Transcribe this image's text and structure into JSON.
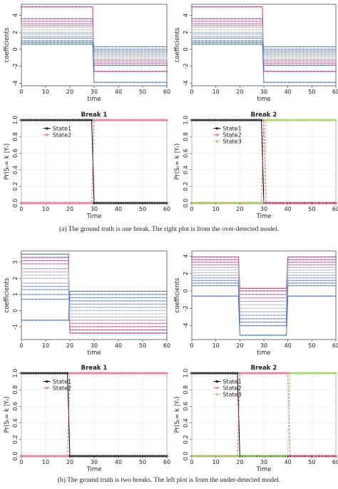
{
  "captions": {
    "a": "(a) The ground truth is one break. The right plot is from the over-detected model.",
    "b": "(b) The ground truth is two breaks. The left plot is from the under-detected model."
  },
  "colors": {
    "state1": "#000000",
    "state2": "#e05a8a",
    "state3": "#8fcf4a",
    "coef_pink": "#b0388f",
    "coef_blue": "#4a6fc4",
    "coef_light": "#c8c8c8"
  },
  "chart_data": [
    {
      "id": "a1-coef",
      "type": "line",
      "xlabel": "time",
      "ylabel": "coefficients",
      "xlim": [
        0,
        60
      ],
      "ylim": [
        -4.3,
        5.3
      ],
      "xticks": [
        "0",
        "10",
        "20",
        "30",
        "40",
        "50",
        "60"
      ],
      "yticks": [
        "-4",
        "-2",
        "0",
        "2",
        "4"
      ],
      "breaks": [
        30
      ],
      "series_levels": [
        [
          5.0,
          -2.6
        ],
        [
          3.6,
          -1.9
        ],
        [
          3.3,
          -1.7
        ],
        [
          3.0,
          -1.5
        ],
        [
          2.8,
          -1.3
        ],
        [
          2.6,
          -1.2
        ],
        [
          2.3,
          -1.0
        ],
        [
          2.0,
          -0.8
        ],
        [
          1.8,
          -0.6
        ],
        [
          1.5,
          -0.4
        ],
        [
          1.3,
          -0.2
        ],
        [
          1.0,
          0.0
        ],
        [
          0.8,
          0.3
        ],
        [
          0.6,
          -3.9
        ]
      ]
    },
    {
      "id": "a2-coef",
      "type": "line",
      "xlabel": "time",
      "ylabel": "coefficients",
      "xlim": [
        0,
        60
      ],
      "ylim": [
        -4.3,
        5.3
      ],
      "xticks": [
        "0",
        "10",
        "20",
        "30",
        "40",
        "50",
        "60"
      ],
      "yticks": [
        "-4",
        "-2",
        "0",
        "2",
        "4"
      ],
      "breaks": [
        30
      ],
      "series_levels": [
        [
          5.0,
          -2.6
        ],
        [
          3.6,
          -1.9
        ],
        [
          3.3,
          -1.7
        ],
        [
          3.0,
          -1.5
        ],
        [
          2.8,
          -1.3
        ],
        [
          2.6,
          -1.2
        ],
        [
          2.3,
          -1.0
        ],
        [
          2.0,
          -0.8
        ],
        [
          1.8,
          -0.6
        ],
        [
          1.5,
          -0.4
        ],
        [
          1.3,
          -0.2
        ],
        [
          1.0,
          0.0
        ],
        [
          0.8,
          0.3
        ],
        [
          0.6,
          -3.9
        ]
      ]
    },
    {
      "id": "a1-prob",
      "type": "line",
      "title": "Break 1",
      "xlabel": "Time",
      "ylabel": "Pr(Sₜ= k |Yₜ)",
      "xlim": [
        0,
        60
      ],
      "ylim": [
        0,
        1
      ],
      "xticks": [
        "0",
        "10",
        "20",
        "30",
        "40",
        "50",
        "60"
      ],
      "yticks": [
        "0.0",
        "0.2",
        "0.4",
        "0.6",
        "0.8",
        "1.0"
      ],
      "legend": [
        "State1",
        "State2"
      ],
      "series": [
        {
          "name": "State1",
          "values": [
            [
              0,
              1
            ],
            [
              29,
              1
            ],
            [
              30,
              0
            ],
            [
              60,
              0
            ]
          ]
        },
        {
          "name": "State2",
          "values": [
            [
              0,
              0
            ],
            [
              29,
              0
            ],
            [
              30,
              1
            ],
            [
              60,
              1
            ]
          ]
        }
      ]
    },
    {
      "id": "a2-prob",
      "type": "line",
      "title": "Break 2",
      "xlabel": "Time",
      "ylabel": "Pr(Sₜ= k |Yₜ)",
      "xlim": [
        0,
        60
      ],
      "ylim": [
        0,
        1
      ],
      "xticks": [
        "0",
        "10",
        "20",
        "30",
        "40",
        "50",
        "60"
      ],
      "yticks": [
        "0.0",
        "0.2",
        "0.4",
        "0.6",
        "0.8",
        "1.0"
      ],
      "legend": [
        "State1",
        "State2",
        "State3"
      ],
      "series": [
        {
          "name": "State1",
          "values": [
            [
              0,
              1
            ],
            [
              29,
              1
            ],
            [
              30,
              0
            ],
            [
              60,
              0
            ]
          ]
        },
        {
          "name": "State2",
          "values": [
            [
              0,
              0
            ],
            [
              29,
              0
            ],
            [
              30,
              1
            ],
            [
              31,
              0
            ],
            [
              60,
              0
            ]
          ]
        },
        {
          "name": "State3",
          "values": [
            [
              0,
              0
            ],
            [
              30,
              0
            ],
            [
              31,
              1
            ],
            [
              60,
              1
            ]
          ]
        }
      ]
    },
    {
      "id": "b1-coef",
      "type": "line",
      "xlabel": "time",
      "ylabel": "coefficients",
      "xlim": [
        0,
        60
      ],
      "ylim": [
        -1.8,
        3.7
      ],
      "xticks": [
        "0",
        "10",
        "20",
        "30",
        "40",
        "50",
        "60"
      ],
      "yticks": [
        "-1",
        "0",
        "1",
        "2",
        "3"
      ],
      "breaks": [
        20
      ],
      "series_levels": [
        [
          3.5,
          -1.4
        ],
        [
          3.3,
          -1.2
        ],
        [
          3.1,
          -1.0
        ],
        [
          2.9,
          -0.8
        ],
        [
          2.6,
          -0.6
        ],
        [
          2.4,
          -0.4
        ],
        [
          2.2,
          -0.2
        ],
        [
          2.0,
          0.0
        ],
        [
          1.7,
          0.2
        ],
        [
          1.5,
          0.4
        ],
        [
          1.3,
          0.6
        ],
        [
          1.0,
          0.8
        ],
        [
          0.7,
          1.0
        ],
        [
          -0.6,
          1.2
        ]
      ]
    },
    {
      "id": "b2-coef",
      "type": "line",
      "xlabel": "time",
      "ylabel": "coefficients",
      "xlim": [
        0,
        60
      ],
      "ylim": [
        -5.6,
        4.6
      ],
      "xticks": [
        "0",
        "10",
        "20",
        "30",
        "40",
        "50",
        "60"
      ],
      "yticks": [
        "-4",
        "-2",
        "0",
        "2",
        "4"
      ],
      "breaks": [
        20,
        40
      ],
      "series_levels": [
        [
          3.9,
          0.3,
          3.9
        ],
        [
          3.6,
          0.0,
          3.6
        ],
        [
          3.3,
          -0.4,
          3.3
        ],
        [
          3.0,
          -0.8,
          3.0
        ],
        [
          2.7,
          -1.2,
          2.7
        ],
        [
          2.4,
          -1.6,
          2.4
        ],
        [
          2.1,
          -2.0,
          2.1
        ],
        [
          1.8,
          -2.4,
          1.8
        ],
        [
          1.5,
          -2.8,
          1.5
        ],
        [
          1.2,
          -3.2,
          1.2
        ],
        [
          0.9,
          -3.6,
          0.9
        ],
        [
          0.6,
          -4.0,
          0.6
        ],
        [
          -0.6,
          -5.1,
          -0.6
        ]
      ]
    },
    {
      "id": "b1-prob",
      "type": "line",
      "title": "Break 1",
      "xlabel": "Time",
      "ylabel": "Pr(Sₜ= k |Yₜ)",
      "xlim": [
        0,
        60
      ],
      "ylim": [
        0,
        1
      ],
      "xticks": [
        "0",
        "10",
        "20",
        "30",
        "40",
        "50",
        "60"
      ],
      "yticks": [
        "0.0",
        "0.2",
        "0.4",
        "0.6",
        "0.8",
        "1.0"
      ],
      "legend": [
        "State1",
        "State2"
      ],
      "series": [
        {
          "name": "State1",
          "values": [
            [
              0,
              1
            ],
            [
              19,
              1
            ],
            [
              20,
              0
            ],
            [
              60,
              0
            ]
          ]
        },
        {
          "name": "State2",
          "values": [
            [
              0,
              0
            ],
            [
              19,
              0
            ],
            [
              20,
              1
            ],
            [
              60,
              1
            ]
          ]
        }
      ]
    },
    {
      "id": "b2-prob",
      "type": "line",
      "title": "Break 2",
      "xlabel": "Time",
      "ylabel": "Pr(Sₜ= k |Yₜ)",
      "xlim": [
        0,
        60
      ],
      "ylim": [
        0,
        1
      ],
      "xticks": [
        "0",
        "10",
        "20",
        "30",
        "40",
        "50",
        "60"
      ],
      "yticks": [
        "0.0",
        "0.2",
        "0.4",
        "0.6",
        "0.8",
        "1.0"
      ],
      "legend": [
        "State1",
        "State2",
        "State3"
      ],
      "series": [
        {
          "name": "State1",
          "values": [
            [
              0,
              1
            ],
            [
              19,
              1
            ],
            [
              20,
              0
            ],
            [
              60,
              0
            ]
          ]
        },
        {
          "name": "State2",
          "values": [
            [
              0,
              0
            ],
            [
              19,
              0
            ],
            [
              20,
              1
            ],
            [
              40,
              1
            ],
            [
              41,
              0
            ],
            [
              60,
              0
            ]
          ]
        },
        {
          "name": "State3",
          "values": [
            [
              0,
              0
            ],
            [
              40,
              0
            ],
            [
              41,
              1
            ],
            [
              60,
              1
            ]
          ]
        }
      ]
    }
  ]
}
